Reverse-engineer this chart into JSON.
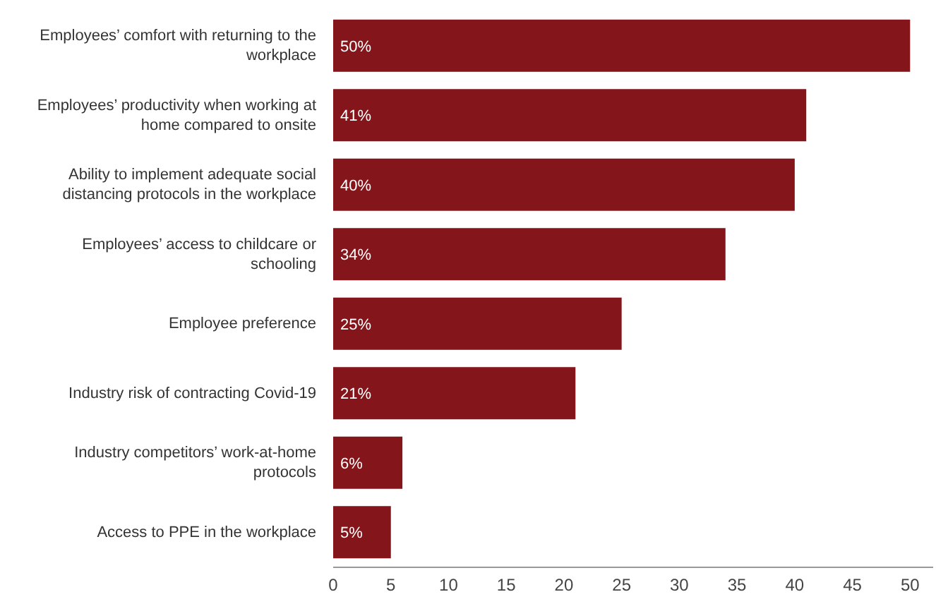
{
  "chart_data": {
    "type": "bar",
    "orientation": "horizontal",
    "categories": [
      "Employees’ comfort with returning to the workplace",
      "Employees’ productivity when working at home compared to onsite",
      "Ability to implement adequate social distancing protocols in the workplace",
      "Employees’ access to childcare or schooling",
      "Employee preference",
      "Industry risk of contracting Covid-19",
      "Industry competitors’ work-at-home protocols",
      "Access to PPE in the workplace"
    ],
    "values": [
      50,
      41,
      40,
      34,
      25,
      21,
      6,
      5
    ],
    "value_labels": [
      "50%",
      "41%",
      "40%",
      "34%",
      "25%",
      "21%",
      "6%",
      "5%"
    ],
    "color": "#83151b",
    "xlim": [
      0,
      52
    ],
    "xticks": [
      0,
      5,
      10,
      15,
      20,
      25,
      30,
      35,
      40,
      45,
      50
    ]
  }
}
